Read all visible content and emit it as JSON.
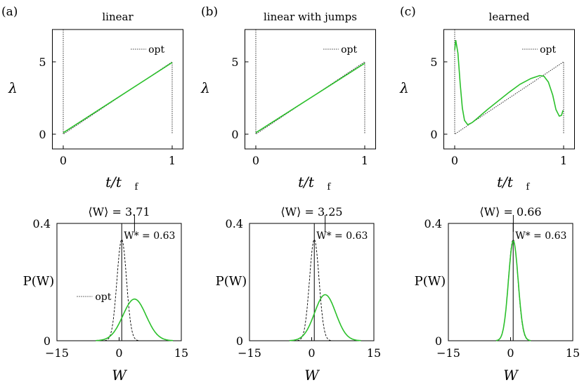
{
  "colors": {
    "learned": "#2bc02b",
    "optimal": "#000000",
    "axis": "#000000"
  },
  "panel_letters": [
    "(a)",
    "(b)",
    "(c)"
  ],
  "top_titles": [
    "linear",
    "linear with jumps",
    "learned"
  ],
  "axis_labels": {
    "top_x": "t/t",
    "top_x_sub": "f",
    "top_y": "λ",
    "bottom_x": "W",
    "bottom_y": "P(W)"
  },
  "legend_label": "opt",
  "top_y_ticks": [
    "0",
    "5"
  ],
  "top_x_ticks": [
    "0",
    "1"
  ],
  "bottom_y_ticks": [
    "0",
    "0.4"
  ],
  "bottom_x_ticks": [
    "−15",
    "0",
    "15"
  ],
  "mean_work": [
    "3.71",
    "3.25",
    "0.66"
  ],
  "mean_work_prefix": "⟨W⟩ = ",
  "w_star_label": "W* = 0.63",
  "chart_data": [
    {
      "type": "line",
      "title": "linear",
      "xlabel": "t/t_f",
      "ylabel": "λ",
      "xlim": [
        -0.1,
        1.1
      ],
      "ylim": [
        -1,
        7
      ],
      "series": [
        {
          "name": "opt",
          "style": "dotted",
          "x": [
            0,
            0,
            1,
            1
          ],
          "y": [
            7,
            0,
            5,
            0
          ]
        },
        {
          "name": "learned",
          "x": [
            0,
            1
          ],
          "y": [
            0.1,
            4.95
          ]
        }
      ]
    },
    {
      "type": "line",
      "title": "linear with jumps",
      "xlabel": "t/t_f",
      "ylabel": "λ",
      "xlim": [
        -0.1,
        1.1
      ],
      "ylim": [
        -1,
        7
      ],
      "series": [
        {
          "name": "opt",
          "style": "dotted",
          "x": [
            0,
            0,
            1,
            1
          ],
          "y": [
            7,
            0,
            5,
            0
          ]
        },
        {
          "name": "learned",
          "x": [
            0,
            1
          ],
          "y": [
            0.1,
            4.9
          ]
        }
      ]
    },
    {
      "type": "line",
      "title": "learned",
      "xlabel": "t/t_f",
      "ylabel": "λ",
      "xlim": [
        -0.1,
        1.1
      ],
      "ylim": [
        -1,
        7
      ],
      "series": [
        {
          "name": "opt",
          "style": "dotted",
          "x": [
            0,
            0,
            1,
            1
          ],
          "y": [
            7,
            0,
            5,
            0
          ]
        },
        {
          "name": "learned",
          "x": [
            0,
            0.01,
            0.03,
            0.05,
            0.07,
            0.09,
            0.12,
            0.16,
            0.2,
            0.3,
            0.4,
            0.5,
            0.6,
            0.7,
            0.78,
            0.82,
            0.86,
            0.9,
            0.93,
            0.96,
            0.98,
            0.995
          ],
          "y": [
            5.8,
            6.5,
            5.6,
            3.5,
            1.8,
            0.95,
            0.65,
            0.8,
            1.05,
            1.7,
            2.3,
            2.9,
            3.45,
            3.85,
            4.05,
            4.0,
            3.6,
            2.7,
            1.7,
            1.25,
            1.3,
            1.65
          ]
        }
      ]
    },
    {
      "type": "line",
      "title": "⟨W⟩ = 3.71",
      "xlabel": "W",
      "ylabel": "P(W)",
      "xlim": [
        -15,
        15
      ],
      "ylim": [
        0,
        0.4
      ],
      "mean_marker": 3.71,
      "optimal_marker": 0.63,
      "series": [
        {
          "name": "opt",
          "style": "dashed",
          "mean": 0.63,
          "sd": 1.15,
          "peak": 0.345
        },
        {
          "name": "learned",
          "mean": 3.71,
          "sd": 2.8,
          "peak": 0.142
        }
      ]
    },
    {
      "type": "line",
      "title": "⟨W⟩ = 3.25",
      "xlabel": "W",
      "ylabel": "P(W)",
      "xlim": [
        -15,
        15
      ],
      "ylim": [
        0,
        0.4
      ],
      "mean_marker": 3.25,
      "optimal_marker": 0.63,
      "series": [
        {
          "name": "opt",
          "style": "dashed",
          "mean": 0.63,
          "sd": 1.15,
          "peak": 0.345
        },
        {
          "name": "learned",
          "mean": 3.25,
          "sd": 2.55,
          "peak": 0.157
        }
      ]
    },
    {
      "type": "line",
      "title": "⟨W⟩ = 0.66",
      "xlabel": "W",
      "ylabel": "P(W)",
      "xlim": [
        -15,
        15
      ],
      "ylim": [
        0,
        0.4
      ],
      "mean_marker": 0.66,
      "optimal_marker": 0.63,
      "series": [
        {
          "name": "opt",
          "style": "dashed",
          "mean": 0.63,
          "sd": 1.15,
          "peak": 0.345
        },
        {
          "name": "learned",
          "mean": 0.66,
          "sd": 1.17,
          "peak": 0.34
        }
      ]
    }
  ]
}
